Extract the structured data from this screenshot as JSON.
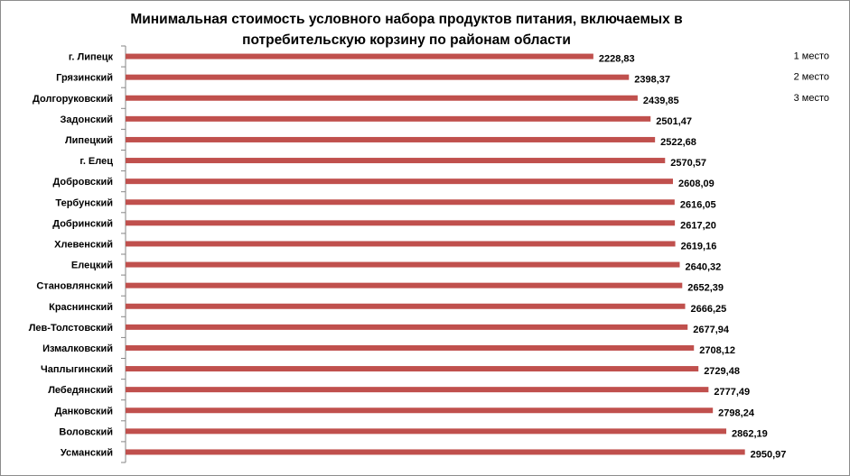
{
  "chart_data": {
    "type": "bar",
    "orientation": "horizontal",
    "title": "Минимальная стоимость условного набора продуктов питания, включаемых в потребительскую корзину  по районам области",
    "title_lines": [
      "Минимальная стоимость условного набора продуктов питания, включаемых в",
      "потребительскую корзину  по районам области"
    ],
    "categories": [
      "г. Липецк",
      "Грязинский",
      "Долгоруковский",
      "Задонский",
      "Липецкий",
      "г. Елец",
      "Добровский",
      "Тербунский",
      "Добринский",
      "Хлевенский",
      "Елецкий",
      "Становлянский",
      "Краснинский",
      "Лев-Толстовский",
      "Измалковский",
      "Чаплыгинский",
      "Лебедянский",
      "Данковский",
      "Воловский",
      "Усманский"
    ],
    "values": [
      2228.83,
      2398.37,
      2439.85,
      2501.47,
      2522.68,
      2570.57,
      2608.09,
      2616.05,
      2617.2,
      2619.16,
      2640.32,
      2652.39,
      2666.25,
      2677.94,
      2708.12,
      2729.48,
      2777.49,
      2798.24,
      2862.19,
      2950.97
    ],
    "value_labels": [
      "2228,83",
      "2398,37",
      "2439,85",
      "2501,47",
      "2522,68",
      "2570,57",
      "2608,09",
      "2616,05",
      "2617,20",
      "2619,16",
      "2640,32",
      "2652,39",
      "2666,25",
      "2677,94",
      "2708,12",
      "2729,48",
      "2777,49",
      "2798,24",
      "2862,19",
      "2950,97"
    ],
    "annotations": [
      "1 место",
      "2 место",
      "3 место"
    ],
    "xlim": [
      0,
      3400
    ],
    "bar_color": "#c0504d",
    "grid": false,
    "legend": "none"
  }
}
